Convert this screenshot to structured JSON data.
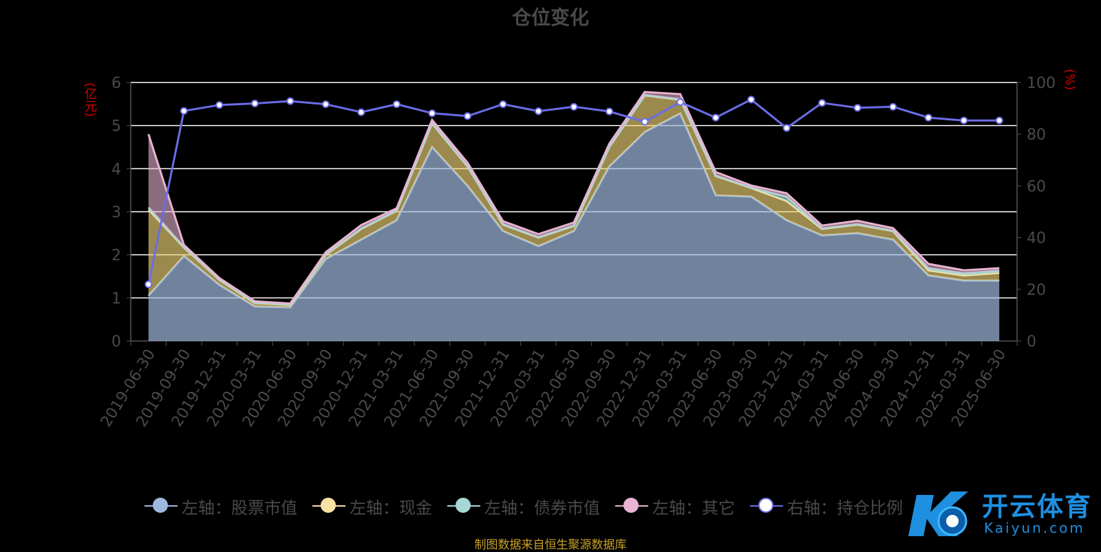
{
  "title": "仓位变化",
  "left_axis_unit": "(亿元)",
  "right_axis_unit": "(%)",
  "source_note": "制图数据来自恒生聚源数据库",
  "watermark": {
    "text": "开云体育",
    "sub": "Kaiyun.com"
  },
  "chart_data": {
    "type": "area",
    "categories": [
      "2019-06-30",
      "2019-09-30",
      "2019-12-31",
      "2020-03-31",
      "2020-06-30",
      "2020-09-30",
      "2020-12-31",
      "2021-03-31",
      "2021-06-30",
      "2021-09-30",
      "2021-12-31",
      "2022-03-31",
      "2022-06-30",
      "2022-09-30",
      "2022-12-31",
      "2023-03-31",
      "2023-06-30",
      "2023-09-30",
      "2023-12-31",
      "2024-03-31",
      "2024-06-30",
      "2024-09-30",
      "2024-12-31",
      "2025-03-31",
      "2025-06-30"
    ],
    "y_left": {
      "min": 0,
      "max": 6,
      "ticks": [
        0,
        1,
        2,
        3,
        4,
        5,
        6
      ]
    },
    "y_right": {
      "min": 0,
      "max": 100,
      "ticks": [
        0,
        20,
        40,
        60,
        80,
        100
      ]
    },
    "stacked": true,
    "series": [
      {
        "name": "左轴：股票市值",
        "axis": "left",
        "color": "#9fb9de",
        "values": [
          1.05,
          1.97,
          1.3,
          0.8,
          0.78,
          1.9,
          2.35,
          2.8,
          4.5,
          3.6,
          2.55,
          2.2,
          2.55,
          4.05,
          4.85,
          5.28,
          3.38,
          3.35,
          2.8,
          2.45,
          2.5,
          2.35,
          1.52,
          1.4,
          1.4
        ]
      },
      {
        "name": "左轴：现金",
        "axis": "left",
        "color": "#f7e2a4",
        "values": [
          2.0,
          0.2,
          0.12,
          0.08,
          0.06,
          0.1,
          0.25,
          0.22,
          0.55,
          0.45,
          0.15,
          0.2,
          0.12,
          0.45,
          0.85,
          0.32,
          0.45,
          0.2,
          0.45,
          0.15,
          0.2,
          0.2,
          0.12,
          0.12,
          0.18
        ]
      },
      {
        "name": "左轴：债券市值",
        "axis": "left",
        "color": "#a5d8d6",
        "values": [
          0.05,
          0.01,
          0.01,
          0.01,
          0.01,
          0.01,
          0.01,
          0.01,
          0.01,
          0.01,
          0.01,
          0.01,
          0.01,
          0.01,
          0.01,
          0.01,
          0.01,
          0.01,
          0.1,
          0.01,
          0.01,
          0.01,
          0.05,
          0.05,
          0.05
        ]
      },
      {
        "name": "左轴：其它",
        "axis": "left",
        "color": "#e8b4d2",
        "values": [
          1.7,
          0.05,
          0.03,
          0.03,
          0.02,
          0.05,
          0.08,
          0.05,
          0.07,
          0.08,
          0.07,
          0.07,
          0.07,
          0.07,
          0.07,
          0.12,
          0.08,
          0.05,
          0.08,
          0.07,
          0.08,
          0.06,
          0.1,
          0.07,
          0.06
        ]
      },
      {
        "name": "右轴：持仓比例",
        "axis": "right",
        "color": "#6b6de8",
        "type": "line",
        "values": [
          21.9,
          89.0,
          91.3,
          91.9,
          92.8,
          91.6,
          88.5,
          91.6,
          88.1,
          87.0,
          91.6,
          88.9,
          90.6,
          88.8,
          84.8,
          92.4,
          86.4,
          93.4,
          82.4,
          92.1,
          90.2,
          90.6,
          86.4,
          85.3,
          85.3
        ]
      }
    ]
  }
}
